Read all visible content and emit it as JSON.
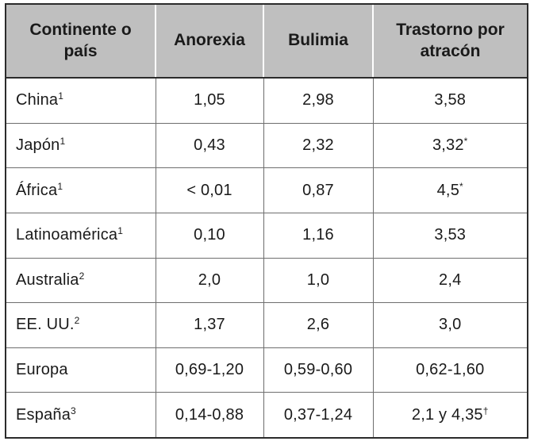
{
  "table": {
    "headers": [
      {
        "line1": "Continente o",
        "line2": "país"
      },
      {
        "line1": "Anorexia",
        "line2": ""
      },
      {
        "line1": "Bulimia",
        "line2": ""
      },
      {
        "line1": "Trastorno por",
        "line2": "atracón"
      }
    ],
    "rows": [
      {
        "country": "China",
        "sup": "1",
        "anorexia": "1,05",
        "bulimia": "2,98",
        "atracon": "3,58",
        "atracon_mark": ""
      },
      {
        "country": "Japón",
        "sup": "1",
        "anorexia": "0,43",
        "bulimia": "2,32",
        "atracon": "3,32",
        "atracon_mark": "*"
      },
      {
        "country": "África",
        "sup": "1",
        "anorexia": "< 0,01",
        "bulimia": "0,87",
        "atracon": "4,5",
        "atracon_mark": "*"
      },
      {
        "country": "Latinoamérica",
        "sup": "1",
        "anorexia": "0,10",
        "bulimia": "1,16",
        "atracon": "3,53",
        "atracon_mark": ""
      },
      {
        "country": "Australia",
        "sup": "2",
        "anorexia": "2,0",
        "bulimia": "1,0",
        "atracon": "2,4",
        "atracon_mark": ""
      },
      {
        "country": "EE. UU.",
        "sup": "2",
        "anorexia": "1,37",
        "bulimia": "2,6",
        "atracon": "3,0",
        "atracon_mark": ""
      },
      {
        "country": "Europa",
        "sup": "",
        "anorexia": "0,69-1,20",
        "bulimia": "0,59-0,60",
        "atracon": "0,62-1,60",
        "atracon_mark": ""
      },
      {
        "country": "España",
        "sup": "3",
        "anorexia": "0,14-0,88",
        "bulimia": "0,37-1,24",
        "atracon": "2,1 y 4,35",
        "atracon_mark": "†"
      }
    ]
  }
}
